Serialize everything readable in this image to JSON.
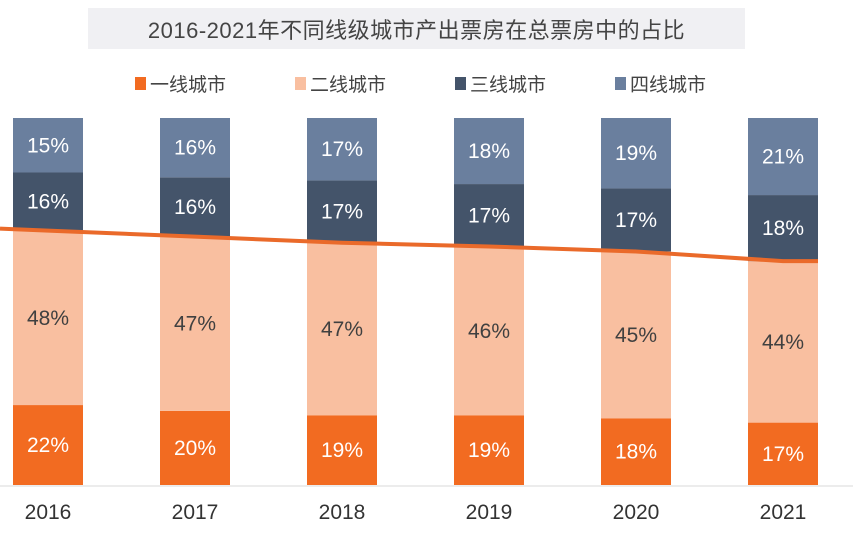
{
  "chart_data": {
    "type": "bar",
    "stacked": true,
    "title": "2016-2021年不同线级城市产出票房在总票房中的占比",
    "categories": [
      "2016",
      "2017",
      "2018",
      "2019",
      "2020",
      "2021"
    ],
    "series": [
      {
        "name": "一线城市",
        "color": "#f26b21",
        "values": [
          22,
          20,
          19,
          19,
          18,
          17
        ],
        "label_color": "#ffffff"
      },
      {
        "name": "二线城市",
        "color": "#f9bfa0",
        "values": [
          48,
          47,
          47,
          46,
          45,
          44
        ],
        "label_color": "#404040"
      },
      {
        "name": "三线城市",
        "color": "#44546a",
        "values": [
          16,
          16,
          17,
          17,
          17,
          18
        ],
        "label_color": "#ffffff"
      },
      {
        "name": "四线城市",
        "color": "#6a7f9e",
        "values": [
          15,
          16,
          17,
          18,
          19,
          21
        ],
        "label_color": "#ffffff"
      }
    ],
    "value_suffix": "%",
    "trend_line": {
      "color": "#ea6a2a",
      "follows": "一线城市 + 二线城市 cumulative top"
    },
    "legend_position": "top",
    "grid": false
  }
}
